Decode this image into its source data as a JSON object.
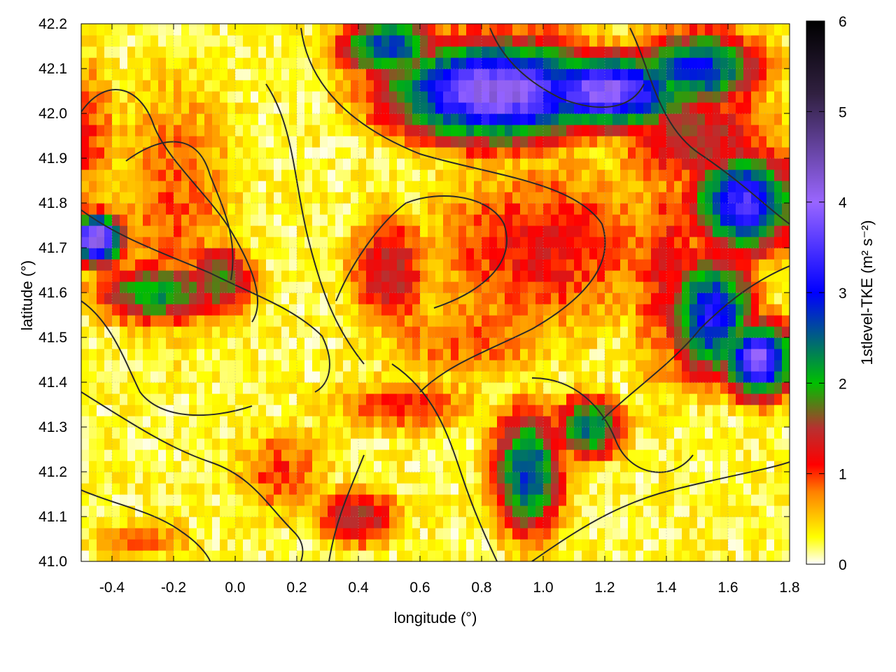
{
  "chart_data": {
    "type": "heatmap",
    "title": "",
    "xlabel": "longitude (°)",
    "ylabel": "latitude (°)",
    "xlim": [
      -0.5,
      1.8
    ],
    "ylim": [
      41.0,
      42.2
    ],
    "x_ticks": [
      -0.4,
      -0.2,
      0.0,
      0.2,
      0.4,
      0.6,
      0.8,
      1.0,
      1.2,
      1.4,
      1.6,
      1.8
    ],
    "x_tick_labels": [
      "-0.4",
      "-0.2",
      "0.0",
      "0.2",
      "0.4",
      "0.6",
      "0.8",
      "1.0",
      "1.2",
      "1.4",
      "1.6",
      "1.8"
    ],
    "y_ticks": [
      41.0,
      41.1,
      41.2,
      41.3,
      41.4,
      41.5,
      41.6,
      41.7,
      41.8,
      41.9,
      42.0,
      42.1,
      42.2
    ],
    "y_tick_labels": [
      "41.0",
      "41.1",
      "41.2",
      "41.3",
      "41.4",
      "41.5",
      "41.6",
      "41.7",
      "41.8",
      "41.9",
      "42.0",
      "42.1",
      "42.2"
    ],
    "grid": true,
    "colorbar": {
      "label": "1stlevel-TKE",
      "units": "(m² s⁻²)",
      "range": [
        0,
        6
      ],
      "ticks": [
        0,
        1,
        2,
        3,
        4,
        5,
        6
      ],
      "tick_labels": [
        "0",
        "1",
        "2",
        "3",
        "4",
        "5",
        "6"
      ],
      "palette": [
        "#ffffff",
        "#ffff00",
        "#ff8000",
        "#ff0000",
        "#b83030",
        "#00c000",
        "#0000ff",
        "#9966ff",
        "#302040",
        "#000000"
      ],
      "palette_stops": [
        0,
        0.3,
        0.8,
        1.1,
        1.5,
        2.0,
        3.0,
        4.0,
        5.2,
        6.0
      ]
    },
    "hotspots": [
      {
        "lon": -0.2,
        "lat": 41.8,
        "value": 0.9,
        "sx": 0.18,
        "sy": 0.25
      },
      {
        "lon": -0.48,
        "lat": 41.95,
        "value": 1.0,
        "sx": 0.08,
        "sy": 0.15
      },
      {
        "lon": -0.25,
        "lat": 41.6,
        "value": 2.2,
        "sx": 0.15,
        "sy": 0.05
      },
      {
        "lon": -0.05,
        "lat": 41.63,
        "value": 2.0,
        "sx": 0.08,
        "sy": 0.06
      },
      {
        "lon": -0.45,
        "lat": 41.72,
        "value": 4.5,
        "sx": 0.06,
        "sy": 0.04
      },
      {
        "lon": 0.5,
        "lat": 41.65,
        "value": 1.5,
        "sx": 0.1,
        "sy": 0.1
      },
      {
        "lon": 1.0,
        "lat": 41.7,
        "value": 1.2,
        "sx": 0.3,
        "sy": 0.15
      },
      {
        "lon": 0.75,
        "lat": 41.5,
        "value": 0.9,
        "sx": 0.25,
        "sy": 0.08
      },
      {
        "lon": 0.85,
        "lat": 42.05,
        "value": 4.2,
        "sx": 0.25,
        "sy": 0.08
      },
      {
        "lon": 1.2,
        "lat": 42.05,
        "value": 4.0,
        "sx": 0.2,
        "sy": 0.06
      },
      {
        "lon": 0.5,
        "lat": 42.15,
        "value": 2.8,
        "sx": 0.12,
        "sy": 0.05
      },
      {
        "lon": 1.5,
        "lat": 42.1,
        "value": 3.0,
        "sx": 0.15,
        "sy": 0.06
      },
      {
        "lon": 1.65,
        "lat": 41.8,
        "value": 3.5,
        "sx": 0.12,
        "sy": 0.08
      },
      {
        "lon": 1.55,
        "lat": 41.55,
        "value": 3.2,
        "sx": 0.1,
        "sy": 0.1
      },
      {
        "lon": 1.7,
        "lat": 41.45,
        "value": 4.0,
        "sx": 0.08,
        "sy": 0.06
      },
      {
        "lon": 0.95,
        "lat": 41.2,
        "value": 2.8,
        "sx": 0.08,
        "sy": 0.1
      },
      {
        "lon": 1.15,
        "lat": 41.3,
        "value": 2.5,
        "sx": 0.08,
        "sy": 0.05
      },
      {
        "lon": 0.4,
        "lat": 41.1,
        "value": 1.6,
        "sx": 0.1,
        "sy": 0.05
      },
      {
        "lon": 0.15,
        "lat": 41.2,
        "value": 1.0,
        "sx": 0.12,
        "sy": 0.08
      },
      {
        "lon": -0.3,
        "lat": 41.05,
        "value": 0.8,
        "sx": 0.15,
        "sy": 0.04
      },
      {
        "lon": 0.55,
        "lat": 41.35,
        "value": 1.0,
        "sx": 0.2,
        "sy": 0.05
      },
      {
        "lon": 1.5,
        "lat": 41.95,
        "value": 1.5,
        "sx": 0.2,
        "sy": 0.1
      },
      {
        "lon": 1.4,
        "lat": 41.65,
        "value": 1.2,
        "sx": 0.1,
        "sy": 0.2
      }
    ]
  },
  "labels": {
    "xlabel": "longitude (°)",
    "ylabel": "latitude (°)",
    "colorbar_label": "1stlevel-TKE (m² s⁻²)"
  }
}
